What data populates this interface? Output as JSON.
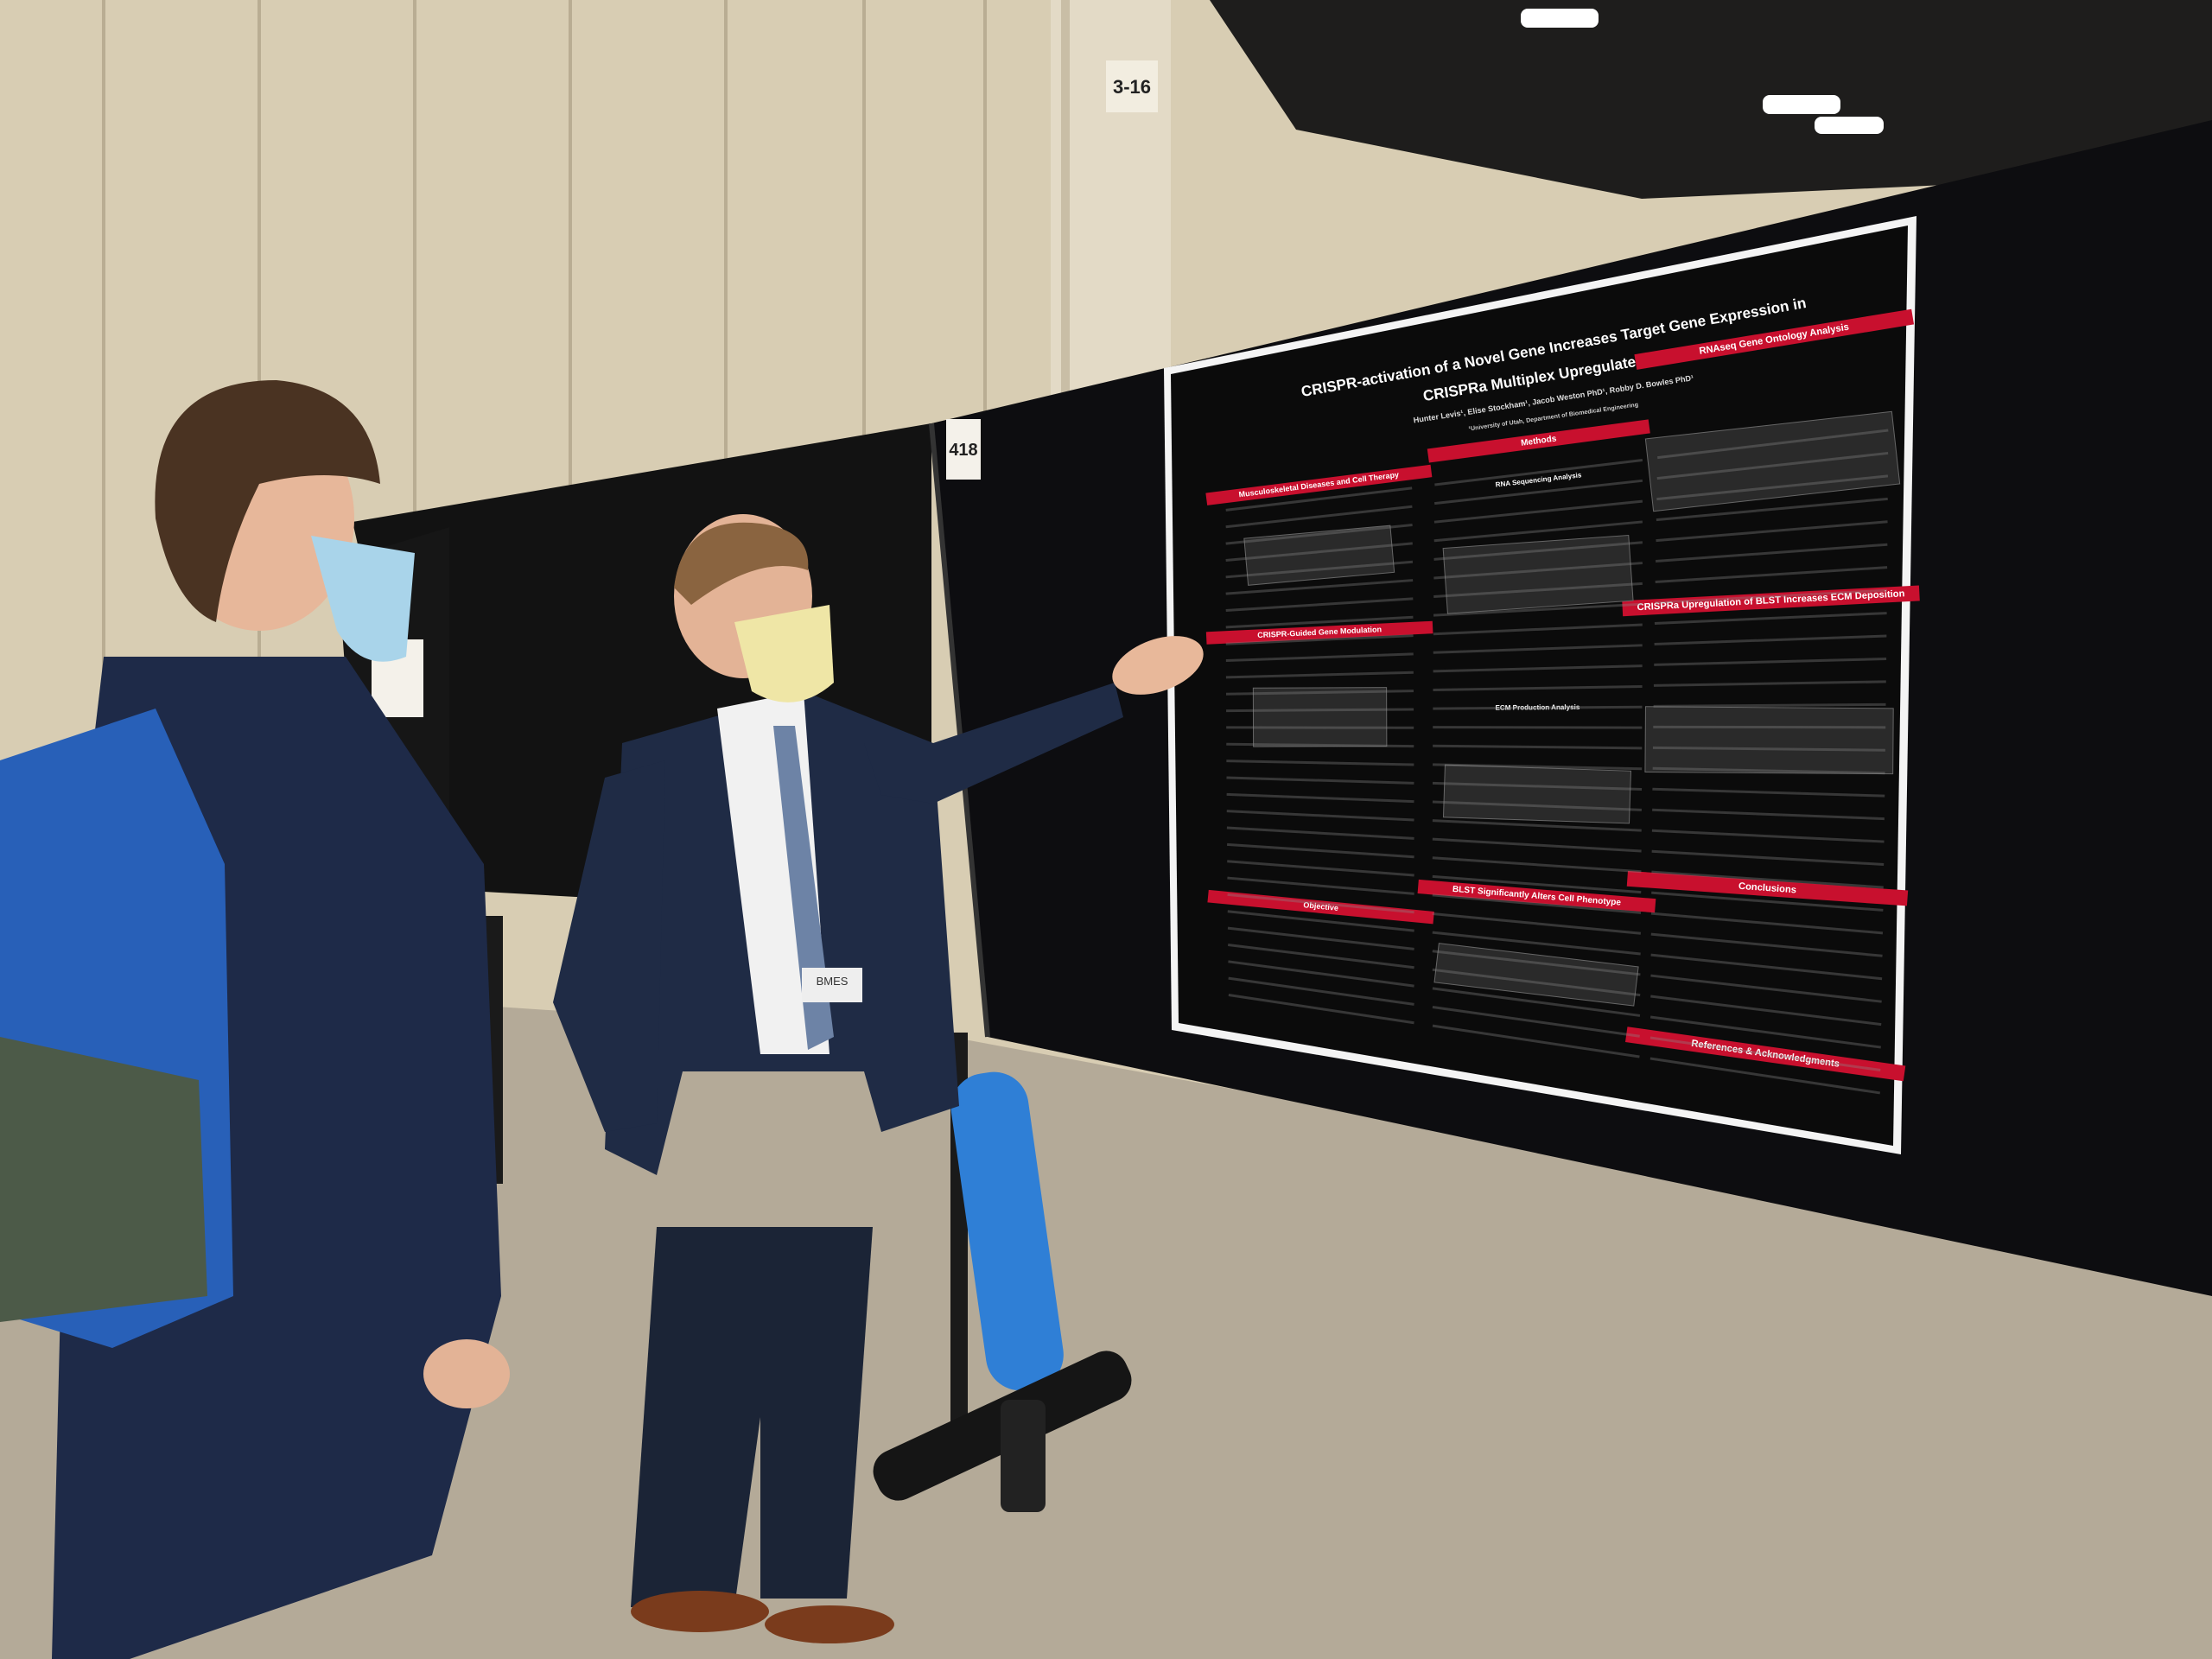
{
  "signs": {
    "column": "3-16",
    "booth": "418"
  },
  "badge": "BMES",
  "poster": {
    "title_line1": "CRISPR-activation of a Novel Gene Increases Target Gene Expression in",
    "title_line2": "CRISPRa Multiplex Upregulated Cells",
    "authors": "Hunter Levis¹, Elise Stockham¹, Jacob Weston PhD¹, Robby D. Bowles PhD¹",
    "affiliation": "¹University of Utah, Department of Biomedical Engineering",
    "sections": [
      "Musculoskeletal Diseases and Cell Therapy",
      "CRISPR-Guided Gene Modulation",
      "Objective",
      "Methods",
      "RNA Sequencing Analysis",
      "ECM Production Analysis",
      "BLST Significantly Alters Cell Phenotype",
      "RNAseq Gene Ontology Analysis",
      "CRISPRa Upregulation of BLST Increases ECM Deposition",
      "Conclusions",
      "References & Acknowledgments"
    ]
  }
}
